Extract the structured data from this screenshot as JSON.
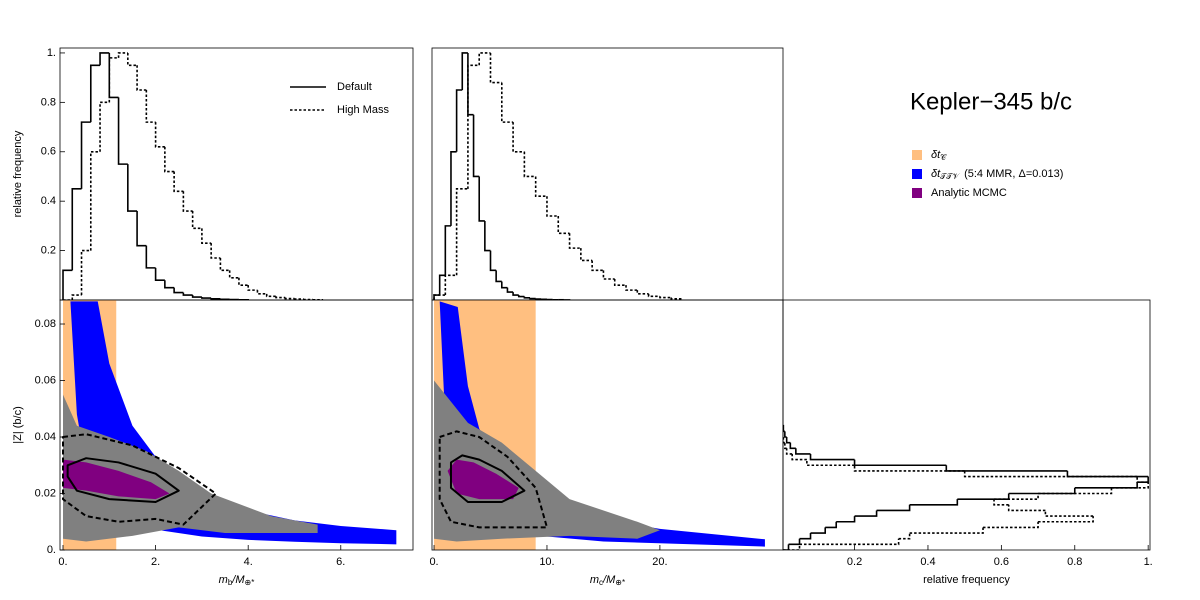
{
  "title": "Kepler−345 b/c",
  "chart_data": [
    {
      "type": "histogram",
      "ylabel": "relative frequency",
      "xlim": [
        -0.065,
        7.56
      ],
      "ylim": [
        0,
        1.02
      ],
      "yticks": [
        0.2,
        0.4,
        0.6,
        0.8,
        {
          "value": 1,
          "label": "1."
        }
      ],
      "series": [
        {
          "name": "Default",
          "color": "#000000",
          "dash": "solid",
          "bins": [
            0,
            0.2,
            0.4,
            0.6,
            0.8,
            1.0,
            1.2,
            1.4,
            1.6,
            1.8,
            2.0,
            2.2,
            2.4,
            2.6,
            2.8,
            3.0,
            3.2,
            3.4,
            3.6,
            3.8,
            4.0
          ],
          "values": [
            0.12,
            0.45,
            0.72,
            0.95,
            1.0,
            0.82,
            0.55,
            0.36,
            0.22,
            0.13,
            0.08,
            0.05,
            0.03,
            0.02,
            0.012,
            0.008,
            0.005,
            0.003,
            0.002,
            0.001
          ]
        },
        {
          "name": "High Mass",
          "color": "#000000",
          "dash": "dotted",
          "bins": [
            0,
            0.2,
            0.4,
            0.6,
            0.8,
            1.0,
            1.2,
            1.4,
            1.6,
            1.8,
            2.0,
            2.2,
            2.4,
            2.6,
            2.8,
            3.0,
            3.2,
            3.4,
            3.6,
            3.8,
            4.0,
            4.2,
            4.4,
            4.6,
            4.8,
            5.0,
            5.2,
            5.4,
            5.6
          ],
          "values": [
            0,
            0.02,
            0.2,
            0.6,
            0.8,
            0.98,
            1.0,
            0.95,
            0.85,
            0.72,
            0.62,
            0.52,
            0.44,
            0.36,
            0.29,
            0.23,
            0.17,
            0.12,
            0.09,
            0.06,
            0.04,
            0.025,
            0.015,
            0.01,
            0.006,
            0.004,
            0.002,
            0.001
          ]
        }
      ]
    },
    {
      "type": "histogram",
      "xlim": [
        -0.18,
        30.9
      ],
      "ylim": [
        0,
        1.02
      ],
      "series": [
        {
          "color": "#000000",
          "dash": "solid",
          "bins": [
            0,
            0.5,
            1,
            1.5,
            2,
            2.5,
            3,
            3.5,
            4,
            4.5,
            5,
            5.5,
            6,
            6.5,
            7,
            7.5,
            8,
            8.5,
            9,
            9.5,
            10,
            10.5,
            11,
            11.5,
            12
          ],
          "values": [
            0.02,
            0.1,
            0.3,
            0.6,
            0.85,
            1.0,
            0.75,
            0.5,
            0.32,
            0.2,
            0.12,
            0.075,
            0.05,
            0.032,
            0.02,
            0.014,
            0.009,
            0.006,
            0.004,
            0.003,
            0.002,
            0.001,
            0.001,
            0.0005
          ]
        },
        {
          "color": "#000000",
          "dash": "dotted",
          "bins": [
            0,
            1,
            2,
            3,
            4,
            5,
            6,
            7,
            8,
            9,
            10,
            11,
            12,
            13,
            14,
            15,
            16,
            17,
            18,
            19,
            20,
            21,
            22
          ],
          "values": [
            0.02,
            0.1,
            0.45,
            0.95,
            1.0,
            0.88,
            0.72,
            0.6,
            0.5,
            0.42,
            0.34,
            0.27,
            0.21,
            0.16,
            0.12,
            0.085,
            0.06,
            0.04,
            0.025,
            0.015,
            0.01,
            0.005
          ]
        }
      ]
    },
    {
      "type": "scatter",
      "ylabel": "|Z| (b/c)",
      "xlabel": [
        "m",
        "b",
        "/M",
        "⊕*"
      ],
      "xlim": [
        -0.065,
        7.56
      ],
      "ylim": [
        0,
        0.0885
      ],
      "xticks": [
        {
          "value": 0,
          "label": "0."
        },
        {
          "value": 2,
          "label": "2."
        },
        {
          "value": 4,
          "label": "4."
        },
        {
          "value": 6,
          "label": "6."
        }
      ],
      "yticks": [
        {
          "value": 0,
          "label": "0."
        },
        0.02,
        0.04,
        0.06,
        0.08
      ],
      "regions": [
        {
          "name": [
            "δt",
            "𝒞"
          ],
          "color": "#ffbf80",
          "shape": "rect",
          "x": [
            0,
            1.15
          ],
          "y": [
            0,
            0.0885
          ]
        },
        {
          "name": [
            "δt",
            "𝒯𝒯𝒱",
            "(5:4 MMR, Δ=0.013)"
          ],
          "color": "#0000ff",
          "shape": "polygon",
          "x": [
            0.75,
            1.0,
            1.5,
            2,
            3,
            4,
            5,
            6,
            7.2,
            7.2,
            6,
            5,
            4,
            3,
            2,
            1,
            0.5,
            0.3,
            0.16
          ],
          "y": [
            0.088,
            0.066,
            0.044,
            0.033,
            0.02,
            0.014,
            0.0105,
            0.0085,
            0.007,
            0.002,
            0.0024,
            0.0029,
            0.0036,
            0.0048,
            0.0072,
            0.0144,
            0.029,
            0.048,
            0.088
          ]
        },
        {
          "color": "#808080",
          "shape": "polygon",
          "x": [
            0,
            0.3,
            1,
            1.8,
            2.5,
            3.2,
            4.5,
            5.5,
            5.5,
            3.5,
            2.5,
            1.5,
            0.5,
            0
          ],
          "y": [
            0.055,
            0.044,
            0.04,
            0.035,
            0.028,
            0.02,
            0.012,
            0.009,
            0.006,
            0.006,
            0.008,
            0.005,
            0.003,
            0.004
          ]
        },
        {
          "name": [
            "Analytic MCMC"
          ],
          "color": "#800080",
          "shape": "polygon",
          "x": [
            0,
            0.5,
            1.2,
            1.9,
            2.3,
            2.0,
            1.2,
            0.5,
            0
          ],
          "y": [
            0.032,
            0.031,
            0.028,
            0.024,
            0.02,
            0.018,
            0.019,
            0.021,
            0.022
          ]
        },
        {
          "color": "#000000",
          "shape": "contour",
          "dash": "solid",
          "x": [
            0.1,
            0.5,
            1.2,
            2.0,
            2.5,
            2.0,
            1.0,
            0.3,
            0.1
          ],
          "y": [
            0.03,
            0.0325,
            0.031,
            0.027,
            0.021,
            0.017,
            0.018,
            0.021,
            0.026
          ]
        },
        {
          "color": "#000000",
          "shape": "contour",
          "dash": "dashed",
          "x": [
            0,
            0.5,
            1.5,
            2.5,
            3.3,
            2.6,
            2.0,
            1.2,
            0.5,
            0
          ],
          "y": [
            0.04,
            0.041,
            0.037,
            0.029,
            0.02,
            0.009,
            0.011,
            0.01,
            0.012,
            0.018
          ]
        }
      ]
    },
    {
      "type": "scatter",
      "xlabel": [
        "m",
        "c",
        "/M",
        "⊕*"
      ],
      "xlim": [
        -0.18,
        30.9
      ],
      "ylim": [
        0,
        0.0885
      ],
      "xticks": [
        {
          "value": 0,
          "label": "0."
        },
        {
          "value": 10,
          "label": "10."
        },
        {
          "value": 20,
          "label": "20."
        }
      ],
      "regions": [
        {
          "color": "#ffbf80",
          "shape": "rect",
          "x": [
            0,
            9
          ],
          "y": [
            0,
            0.0885
          ]
        },
        {
          "color": "#0000ff",
          "shape": "polygon",
          "x": [
            2.1,
            3,
            4,
            6,
            8,
            10,
            15,
            20,
            29.3,
            29.3,
            15,
            8,
            4,
            2,
            1,
            0.5
          ],
          "y": [
            0.086,
            0.058,
            0.043,
            0.028,
            0.021,
            0.017,
            0.011,
            0.0075,
            0.0038,
            0.0012,
            0.003,
            0.0055,
            0.011,
            0.022,
            0.045,
            0.088
          ]
        },
        {
          "color": "#808080",
          "shape": "polygon",
          "x": [
            0,
            1,
            3,
            6,
            9,
            12,
            18,
            20,
            18,
            12,
            6,
            2,
            0
          ],
          "y": [
            0.06,
            0.055,
            0.045,
            0.038,
            0.028,
            0.018,
            0.01,
            0.007,
            0.004,
            0.005,
            0.004,
            0.003,
            0.004
          ]
        },
        {
          "color": "#800080",
          "shape": "polygon",
          "x": [
            1.2,
            2,
            3.5,
            5.5,
            7.5,
            7,
            4,
            2
          ],
          "y": [
            0.028,
            0.032,
            0.031,
            0.027,
            0.022,
            0.018,
            0.018,
            0.02
          ]
        },
        {
          "color": "#000000",
          "shape": "contour",
          "dash": "solid",
          "x": [
            1.5,
            2.5,
            4,
            6,
            8,
            6,
            3,
            1.5
          ],
          "y": [
            0.031,
            0.0335,
            0.032,
            0.028,
            0.021,
            0.017,
            0.017,
            0.022
          ]
        },
        {
          "color": "#000000",
          "shape": "contour",
          "dash": "dashed",
          "x": [
            0.5,
            2,
            4,
            6.5,
            9,
            10,
            7,
            4,
            1.5,
            0.5
          ],
          "y": [
            0.04,
            0.042,
            0.04,
            0.033,
            0.022,
            0.008,
            0.008,
            0.008,
            0.01,
            0.018
          ]
        }
      ]
    },
    {
      "type": "histogram-horizontal",
      "xlabel": "relative frequency",
      "xlim": [
        0.005,
        1.005
      ],
      "ylim": [
        0,
        0.0885
      ],
      "xticks": [
        0.2,
        0.4,
        0.6,
        0.8,
        {
          "value": 1,
          "label": "1."
        }
      ],
      "series": [
        {
          "color": "#000000",
          "dash": "solid",
          "bins": [
            0,
            0.002,
            0.004,
            0.006,
            0.008,
            0.01,
            0.012,
            0.014,
            0.016,
            0.018,
            0.02,
            0.022,
            0.024,
            0.026,
            0.028,
            0.03,
            0.032,
            0.034,
            0.036,
            0.038,
            0.04,
            0.042,
            0.044
          ],
          "values": [
            0.02,
            0.05,
            0.08,
            0.12,
            0.15,
            0.2,
            0.26,
            0.35,
            0.48,
            0.62,
            0.8,
            0.97,
            1.0,
            0.78,
            0.45,
            0.2,
            0.08,
            0.04,
            0.025,
            0.015,
            0.01,
            0.006
          ]
        },
        {
          "color": "#000000",
          "dash": "dotted",
          "bins": [
            0,
            0.002,
            0.004,
            0.006,
            0.008,
            0.01,
            0.012,
            0.014,
            0.016,
            0.018,
            0.02,
            0.022,
            0.024,
            0.026,
            0.028,
            0.03,
            0.032,
            0.034,
            0.036,
            0.038,
            0.04,
            0.042,
            0.044
          ],
          "values": [
            0.05,
            0.32,
            0.35,
            0.55,
            0.7,
            0.85,
            0.72,
            0.62,
            0.58,
            0.7,
            0.9,
            1.0,
            0.97,
            0.5,
            0.2,
            0.07,
            0.03,
            0.015,
            0.01,
            0.006,
            0.004,
            0.003
          ]
        }
      ]
    }
  ]
}
